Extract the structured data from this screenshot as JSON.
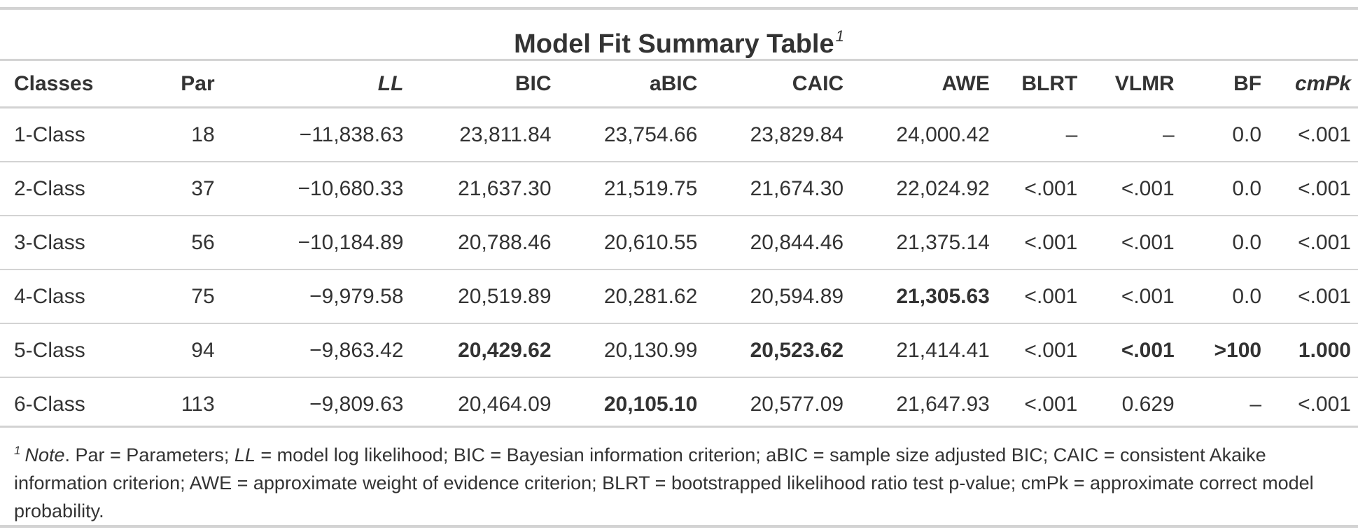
{
  "title": "Model Fit Summary Table",
  "title_footnote_mark": "1",
  "columns": [
    "Classes",
    "Par",
    "LL",
    "BIC",
    "aBIC",
    "CAIC",
    "AWE",
    "BLRT",
    "VLMR",
    "BF",
    "cmPk"
  ],
  "italic_columns": [
    "LL",
    "cmPk"
  ],
  "rows": [
    {
      "cells": [
        "1-Class",
        "18",
        "−11,838.63",
        "23,811.84",
        "23,754.66",
        "23,829.84",
        "24,000.42",
        "–",
        "–",
        "0.0",
        "<.001"
      ],
      "bold": []
    },
    {
      "cells": [
        "2-Class",
        "37",
        "−10,680.33",
        "21,637.30",
        "21,519.75",
        "21,674.30",
        "22,024.92",
        "<.001",
        "<.001",
        "0.0",
        "<.001"
      ],
      "bold": []
    },
    {
      "cells": [
        "3-Class",
        "56",
        "−10,184.89",
        "20,788.46",
        "20,610.55",
        "20,844.46",
        "21,375.14",
        "<.001",
        "<.001",
        "0.0",
        "<.001"
      ],
      "bold": []
    },
    {
      "cells": [
        "4-Class",
        "75",
        "−9,979.58",
        "20,519.89",
        "20,281.62",
        "20,594.89",
        "21,305.63",
        "<.001",
        "<.001",
        "0.0",
        "<.001"
      ],
      "bold": [
        6
      ]
    },
    {
      "cells": [
        "5-Class",
        "94",
        "−9,863.42",
        "20,429.62",
        "20,130.99",
        "20,523.62",
        "21,414.41",
        "<.001",
        "<.001",
        ">100",
        "1.000"
      ],
      "bold": [
        3,
        5,
        8,
        9,
        10
      ]
    },
    {
      "cells": [
        "6-Class",
        "113",
        "−9,809.63",
        "20,464.09",
        "20,105.10",
        "20,577.09",
        "21,647.93",
        "<.001",
        "0.629",
        "–",
        "<.001"
      ],
      "bold": [
        4
      ]
    }
  ],
  "note": {
    "mark": "1",
    "label": "Note",
    "part1": ". Par = Parameters; ",
    "ll": "LL",
    "part2": " = model log likelihood; BIC = Bayesian information criterion; aBIC = sample size adjusted BIC; CAIC = consistent Akaike information criterion; AWE = approximate weight of evidence criterion; BLRT = bootstrapped likelihood ratio test p-value; cmPk = approximate correct model probability."
  }
}
